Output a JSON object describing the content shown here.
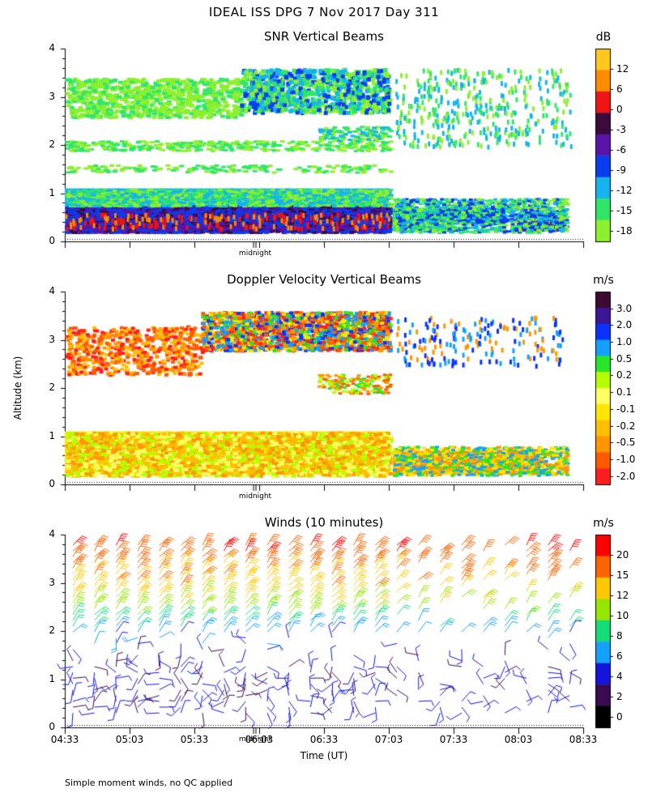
{
  "title": "IDEAL ISS DPG   7 Nov 2017 Day 311",
  "y_axis_label": "Altitude (km)",
  "x_axis_label": "Time (UT)",
  "midnight_label": "midnight",
  "footnote": "Simple moment winds, no QC applied",
  "x_tick_labels": [
    "04:33",
    "05:03",
    "05:33",
    "06:03",
    "06:33",
    "07:03",
    "07:33",
    "08:03",
    "08:33"
  ],
  "y_tick_labels": [
    "0",
    "1",
    "2",
    "3",
    "4"
  ],
  "colors": {
    "background": "#ffffff",
    "axis": "#000000",
    "snr_scale": [
      "#8cf02d",
      "#30e66a",
      "#14b4f0",
      "#0a3cf0",
      "#5a14aa",
      "#3c0a3c",
      "#f01414",
      "#ff8c00",
      "#ffc81e"
    ],
    "velocity_scale": [
      "#ff1e1e",
      "#ff5a00",
      "#ff9600",
      "#ffbe00",
      "#ffe600",
      "#ffff64",
      "#b4ff00",
      "#28e628",
      "#14a0ff",
      "#0a32ff",
      "#3c1496",
      "#3c0a32"
    ],
    "wind_scale": [
      "#000000",
      "#3c0a50",
      "#1414dc",
      "#14a0ff",
      "#14dc78",
      "#96e600",
      "#ffc800",
      "#ff6400",
      "#ff0000"
    ]
  },
  "chart_data": [
    {
      "type": "heatmap",
      "title": "SNR Vertical Beams",
      "xlabel": "",
      "ylabel": "Altitude (km)",
      "ylim": [
        0,
        4
      ],
      "xlim_hours": [
        4.55,
        8.55
      ],
      "colorbar_unit": "dB",
      "colorbar_ticks": [
        "12",
        "6",
        "0",
        "-3",
        "-6",
        "-9",
        "-12",
        "-15",
        "-18"
      ],
      "layers": [
        {
          "alt": [
            0.2,
            0.3
          ],
          "t": [
            4.55,
            7.55
          ],
          "class": "-6"
        },
        {
          "alt": [
            0.3,
            0.7
          ],
          "t": [
            4.55,
            7.05
          ],
          "class": "-9"
        },
        {
          "alt": [
            0.7,
            1.1
          ],
          "t": [
            4.55,
            7.05
          ],
          "class": "-15"
        },
        {
          "alt": [
            2.7,
            3.6
          ],
          "t": [
            4.55,
            7.0
          ],
          "class": "-18"
        },
        {
          "alt": [
            1.9,
            2.4
          ],
          "t": [
            6.5,
            7.05
          ],
          "class": "-18"
        }
      ]
    },
    {
      "type": "heatmap",
      "title": "Doppler Velocity Vertical Beams",
      "xlabel": "",
      "ylabel": "Altitude (km)",
      "ylim": [
        0,
        4
      ],
      "xlim_hours": [
        4.55,
        8.55
      ],
      "colorbar_unit": "m/s",
      "colorbar_ticks": [
        "3.0",
        "2.0",
        "1.0",
        "0.5",
        "0.2",
        "0.1",
        "-0.1",
        "-0.2",
        "-0.5",
        "-1.0",
        "-2.0"
      ],
      "layers": [
        {
          "alt": [
            0.2,
            1.1
          ],
          "t": [
            4.55,
            7.05
          ],
          "class": "-0.1"
        },
        {
          "alt": [
            2.8,
            3.6
          ],
          "t": [
            5.6,
            7.05
          ],
          "class": "-0.5"
        },
        {
          "alt": [
            0.2,
            0.8
          ],
          "t": [
            7.05,
            8.25
          ],
          "class": "-0.2"
        }
      ]
    },
    {
      "type": "wind-barbs",
      "title": "Winds (10 minutes)",
      "xlabel": "Time (UT)",
      "ylabel": "Altitude (km)",
      "ylim": [
        0,
        4
      ],
      "xlim_hours": [
        4.55,
        8.55
      ],
      "colorbar_unit": "m/s",
      "colorbar_ticks": [
        "20",
        "15",
        "12",
        "10",
        "8",
        "6",
        "4",
        "2",
        "0"
      ],
      "profile_interval_minutes": 10,
      "speed_by_altitude_ms": [
        {
          "alt": 0.5,
          "speed": 5
        },
        {
          "alt": 1.5,
          "speed": 4
        },
        {
          "alt": 2.0,
          "speed": 8
        },
        {
          "alt": 2.5,
          "speed": 14
        },
        {
          "alt": 3.0,
          "speed": 17
        },
        {
          "alt": 3.5,
          "speed": 19
        },
        {
          "alt": 3.9,
          "speed": 21
        }
      ]
    }
  ]
}
